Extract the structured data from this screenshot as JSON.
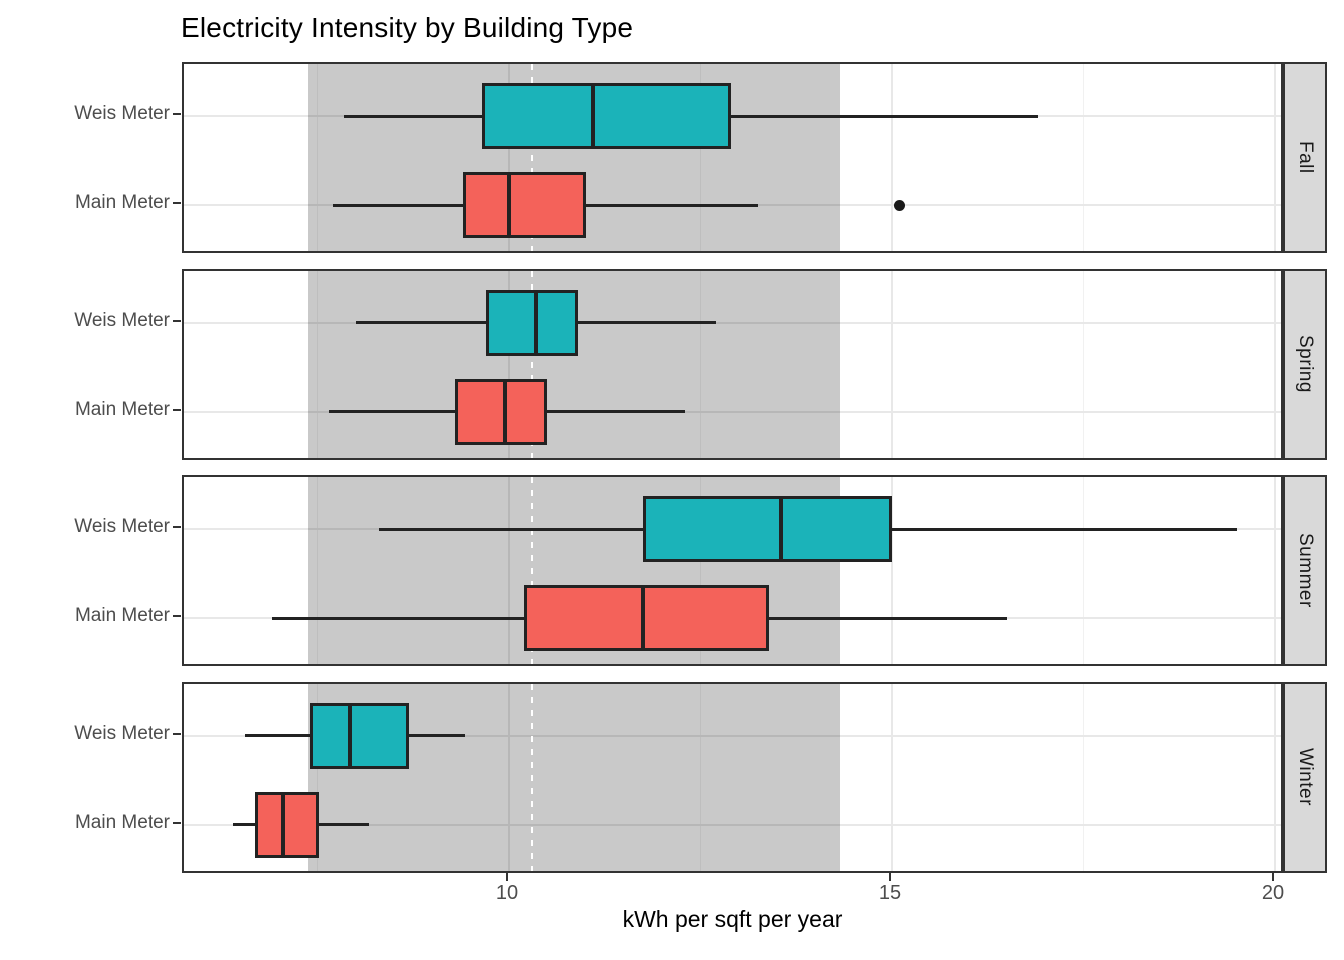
{
  "chart_data": {
    "type": "boxplot",
    "orientation": "horizontal",
    "title": "Electricity Intensity by Building Type",
    "xlabel": "kWh per sqft per year",
    "x_ticks": [
      10,
      15,
      20
    ],
    "x_minor_ticks": [
      7.5,
      12.5,
      17.5
    ],
    "xlim": [
      5.75,
      20.15
    ],
    "grid": true,
    "y_categories": [
      "Weis Meter",
      "Main Meter"
    ],
    "series_colors": {
      "Weis Meter": "#1bb3b9",
      "Main Meter": "#f4625a"
    },
    "box_border_color": "#222222",
    "annotations": {
      "shaded_band": {
        "from": 7.38,
        "to": 14.32,
        "fill": "rgba(0,0,0,0.21)"
      },
      "dashed_reference_line": {
        "x": 10.3,
        "color": "#ffffff",
        "style": "dashed"
      }
    },
    "facets": [
      {
        "label": "Fall",
        "boxes": [
          {
            "category": "Weis Meter",
            "min": 7.85,
            "q1": 9.65,
            "median": 11.1,
            "q3": 12.9,
            "max": 16.9,
            "outliers": []
          },
          {
            "category": "Main Meter",
            "min": 7.7,
            "q1": 9.4,
            "median": 10.0,
            "q3": 11.0,
            "max": 13.25,
            "outliers": [
              15.1
            ]
          }
        ]
      },
      {
        "label": "Spring",
        "boxes": [
          {
            "category": "Weis Meter",
            "min": 8.0,
            "q1": 9.7,
            "median": 10.35,
            "q3": 10.9,
            "max": 12.7,
            "outliers": []
          },
          {
            "category": "Main Meter",
            "min": 7.65,
            "q1": 9.3,
            "median": 9.95,
            "q3": 10.5,
            "max": 12.3,
            "outliers": []
          }
        ]
      },
      {
        "label": "Summer",
        "boxes": [
          {
            "category": "Weis Meter",
            "min": 8.3,
            "q1": 11.75,
            "median": 13.55,
            "q3": 15.0,
            "max": 19.5,
            "outliers": []
          },
          {
            "category": "Main Meter",
            "min": 6.9,
            "q1": 10.2,
            "median": 11.75,
            "q3": 13.4,
            "max": 16.5,
            "outliers": []
          }
        ]
      },
      {
        "label": "Winter",
        "boxes": [
          {
            "category": "Weis Meter",
            "min": 6.55,
            "q1": 7.4,
            "median": 7.92,
            "q3": 8.7,
            "max": 9.43,
            "outliers": []
          },
          {
            "category": "Main Meter",
            "min": 6.4,
            "q1": 6.68,
            "median": 7.05,
            "q3": 7.52,
            "max": 8.17,
            "outliers": []
          }
        ]
      }
    ]
  }
}
